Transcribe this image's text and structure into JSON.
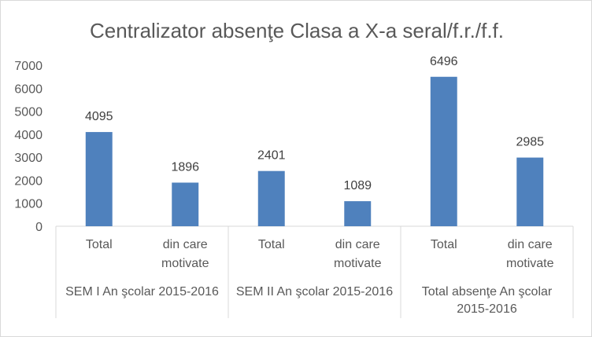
{
  "chart_data": {
    "type": "bar",
    "title": "Centralizator absenţe Clasa a X-a seral/f.r./f.f.",
    "ylim": [
      0,
      7000
    ],
    "yticks": [
      0,
      1000,
      2000,
      3000,
      4000,
      5000,
      6000,
      7000
    ],
    "grid": false,
    "legend": "none",
    "bar_color": "#4f81bd",
    "groups": [
      {
        "label": "SEM I An şcolar 2015-2016",
        "categories": [
          {
            "label": [
              "Total"
            ],
            "value": 4095
          },
          {
            "label": [
              "din care",
              "motivate"
            ],
            "value": 1896
          }
        ]
      },
      {
        "label": "SEM II An şcolar 2015-2016",
        "categories": [
          {
            "label": [
              "Total"
            ],
            "value": 2401
          },
          {
            "label": [
              "din care",
              "motivate"
            ],
            "value": 1089
          }
        ]
      },
      {
        "label": [
          "Total absenţe An şcolar",
          "2015-2016"
        ],
        "categories": [
          {
            "label": [
              "Total"
            ],
            "value": 6496
          },
          {
            "label": [
              "din care",
              "motivate"
            ],
            "value": 2985
          }
        ]
      }
    ]
  }
}
